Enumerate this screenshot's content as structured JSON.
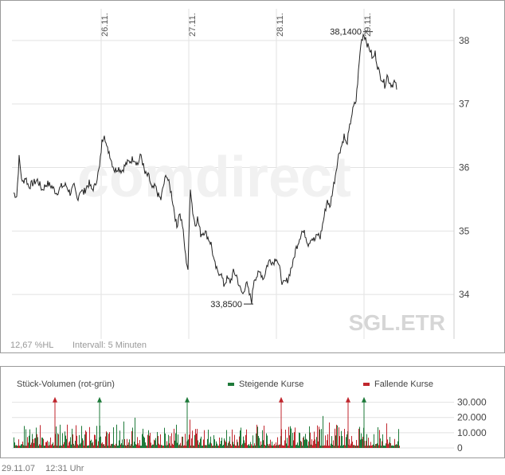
{
  "chart_data": [
    {
      "type": "line",
      "symbol": "SGL.ETR",
      "watermark": "comdirect",
      "date_labels": [
        "26.11.",
        "27.11.",
        "28.11.",
        "29.11."
      ],
      "y_ticks": [
        34,
        35,
        36,
        37,
        38
      ],
      "ylim": [
        33.3,
        38.5
      ],
      "high": {
        "label": "38,1400",
        "value": 38.14
      },
      "low": {
        "label": "33,8500",
        "value": 33.85
      },
      "stats_label": "12,67 %HL",
      "interval_label": "Intervall: 5 Minuten",
      "grid": true,
      "x": [
        0,
        1,
        2,
        3,
        4,
        5,
        6,
        7,
        8,
        9,
        10,
        11,
        12,
        13,
        14,
        15,
        16,
        17,
        18,
        19,
        20,
        21,
        22,
        23,
        24,
        25,
        26,
        27,
        28,
        29,
        30,
        31,
        32,
        33,
        34,
        35,
        36,
        37,
        38,
        39,
        40,
        41,
        42,
        43,
        44,
        45,
        46,
        47,
        48,
        49,
        50,
        51,
        52,
        53,
        54,
        55,
        56,
        57,
        58,
        59,
        60,
        61,
        62,
        63,
        64,
        65,
        66,
        67,
        68,
        69,
        70,
        71,
        72,
        73,
        74,
        75,
        76,
        77,
        78,
        79,
        80,
        81,
        82,
        83,
        84,
        85,
        86,
        87,
        88,
        89,
        90,
        91,
        92,
        93,
        94,
        95,
        96,
        97,
        98,
        99,
        100,
        101,
        102,
        103,
        104,
        105,
        106,
        107,
        108,
        109,
        110,
        111,
        112,
        113,
        114,
        115,
        116,
        117,
        118,
        119,
        120,
        121,
        122,
        123,
        124,
        125,
        126,
        127,
        128,
        129,
        130,
        131,
        132,
        133,
        134,
        135,
        136,
        137,
        138,
        139,
        140,
        141,
        142,
        143,
        144,
        145,
        146,
        147,
        148,
        149,
        150,
        151,
        152,
        153,
        154,
        155,
        156,
        157,
        158,
        159,
        160,
        161,
        162,
        163,
        164,
        165,
        166,
        167,
        168,
        169,
        170,
        171,
        172,
        173,
        174,
        175,
        176,
        177,
        178,
        179,
        180,
        181,
        182,
        183,
        184,
        185,
        186,
        187,
        188,
        189,
        190,
        191,
        192,
        193,
        194,
        195,
        196,
        197,
        198,
        199,
        200,
        201,
        202,
        203,
        204,
        205,
        206,
        207,
        208,
        209,
        210,
        211,
        212,
        213,
        214,
        215,
        216,
        217,
        218,
        219,
        220,
        221,
        222,
        223,
        224,
        225,
        226,
        227,
        228,
        229,
        230,
        231,
        232,
        233,
        234,
        235,
        236,
        237,
        238,
        239,
        240,
        241,
        242,
        243,
        244,
        245,
        246,
        247,
        248,
        249,
        250,
        251,
        252,
        253,
        254,
        255,
        256,
        257,
        258,
        259,
        260,
        261,
        262,
        263,
        264,
        265,
        266,
        267,
        268,
        269,
        270,
        271,
        272,
        273,
        274,
        275,
        276,
        277,
        278,
        279,
        280,
        281,
        282,
        283,
        284,
        285,
        286,
        287,
        288,
        289,
        290,
        291,
        292,
        293,
        294,
        295,
        296,
        297,
        298,
        299,
        300,
        301,
        302,
        303,
        304,
        305,
        306,
        307,
        308,
        309,
        310,
        311,
        312,
        313,
        314,
        315,
        316,
        317,
        318,
        319,
        320,
        321,
        322,
        323,
        324,
        325,
        326,
        327,
        328,
        329,
        330,
        331,
        332,
        333,
        334,
        335,
        336,
        337,
        338,
        339,
        340,
        341,
        342,
        343,
        344,
        345,
        346,
        347,
        348,
        349,
        350,
        351,
        352,
        353,
        354,
        355,
        356,
        357,
        358,
        359,
        360,
        361,
        362,
        363,
        364,
        365,
        366,
        367,
        368,
        369,
        370,
        371,
        372,
        373,
        374,
        375,
        376,
        377,
        378,
        379,
        380,
        381,
        382,
        383,
        384,
        385,
        386,
        387,
        388,
        389,
        390,
        391,
        392,
        393,
        394,
        395,
        396,
        397,
        398,
        399,
        400,
        401,
        402,
        403,
        404,
        405,
        406,
        407,
        408,
        409,
        410,
        411,
        412,
        413,
        414,
        415,
        416,
        417,
        418,
        419,
        420,
        421,
        422,
        423,
        424,
        425,
        426,
        427,
        428,
        429,
        430,
        431,
        432,
        433,
        434,
        435,
        436,
        437,
        438,
        439,
        440,
        441,
        442,
        443,
        444,
        445,
        446,
        447,
        448,
        449,
        450,
        451,
        452,
        453,
        454,
        455,
        456,
        457,
        458,
        459,
        460,
        461,
        462,
        463,
        464,
        465,
        466,
        467,
        468,
        469,
        470,
        471,
        472,
        473,
        474,
        475,
        476,
        477,
        478,
        479,
        480,
        481,
        482,
        483,
        484,
        485,
        486,
        487,
        488,
        489,
        490,
        491,
        492,
        493,
        494,
        495,
        496,
        497,
        498,
        499
      ],
      "anchors": [
        [
          0,
          35.6
        ],
        [
          4,
          35.55
        ],
        [
          7,
          36.15
        ],
        [
          11,
          35.75
        ],
        [
          15,
          35.85
        ],
        [
          19,
          35.7
        ],
        [
          24,
          35.75
        ],
        [
          30,
          35.8
        ],
        [
          36,
          35.65
        ],
        [
          42,
          35.75
        ],
        [
          48,
          35.7
        ],
        [
          54,
          35.6
        ],
        [
          60,
          35.7
        ],
        [
          66,
          35.72
        ],
        [
          71,
          35.6
        ],
        [
          76,
          35.7
        ],
        [
          80,
          35.5
        ],
        [
          84,
          35.65
        ],
        [
          88,
          35.6
        ],
        [
          92,
          35.7
        ],
        [
          95,
          35.75
        ],
        [
          98,
          35.65
        ],
        [
          102,
          35.7
        ],
        [
          105,
          35.85
        ],
        [
          108,
          36.0
        ],
        [
          111,
          36.4
        ],
        [
          114,
          36.55
        ],
        [
          117,
          36.3
        ],
        [
          120,
          36.25
        ],
        [
          123,
          36.1
        ],
        [
          127,
          35.95
        ],
        [
          131,
          36.0
        ],
        [
          136,
          35.95
        ],
        [
          141,
          36.05
        ],
        [
          146,
          36.1
        ],
        [
          151,
          36.15
        ],
        [
          156,
          36.05
        ],
        [
          160,
          36.2
        ],
        [
          165,
          35.9
        ],
        [
          170,
          35.85
        ],
        [
          174,
          35.65
        ],
        [
          178,
          35.7
        ],
        [
          182,
          35.55
        ],
        [
          185,
          35.5
        ],
        [
          188,
          35.7
        ],
        [
          192,
          35.9
        ],
        [
          195,
          35.75
        ],
        [
          198,
          35.6
        ],
        [
          202,
          35.3
        ],
        [
          205,
          35.05
        ],
        [
          208,
          35.3
        ],
        [
          212,
          35.1
        ],
        [
          216,
          34.6
        ],
        [
          219,
          34.4
        ],
        [
          222,
          35.7
        ],
        [
          225,
          35.3
        ],
        [
          228,
          35.1
        ],
        [
          231,
          35.2
        ],
        [
          235,
          34.95
        ],
        [
          240,
          35.0
        ],
        [
          244,
          34.9
        ],
        [
          248,
          34.8
        ],
        [
          252,
          34.5
        ],
        [
          256,
          34.35
        ],
        [
          260,
          34.35
        ],
        [
          264,
          34.15
        ],
        [
          268,
          34.25
        ],
        [
          272,
          34.2
        ],
        [
          276,
          34.35
        ],
        [
          280,
          34.3
        ],
        [
          284,
          34.1
        ],
        [
          288,
          34.0
        ],
        [
          292,
          34.2
        ],
        [
          296,
          34.0
        ],
        [
          299,
          33.9
        ],
        [
          302,
          34.25
        ],
        [
          306,
          34.3
        ],
        [
          310,
          34.35
        ],
        [
          314,
          34.25
        ],
        [
          318,
          34.45
        ],
        [
          322,
          34.55
        ],
        [
          326,
          34.5
        ],
        [
          330,
          34.6
        ],
        [
          334,
          34.4
        ],
        [
          338,
          34.15
        ],
        [
          342,
          34.2
        ],
        [
          345,
          34.25
        ],
        [
          348,
          34.4
        ],
        [
          351,
          34.5
        ],
        [
          354,
          34.7
        ],
        [
          358,
          34.85
        ],
        [
          362,
          35.0
        ],
        [
          366,
          34.95
        ],
        [
          370,
          34.8
        ],
        [
          374,
          34.9
        ],
        [
          378,
          34.85
        ],
        [
          382,
          34.95
        ],
        [
          385,
          34.9
        ],
        [
          388,
          35.1
        ],
        [
          391,
          35.3
        ],
        [
          394,
          35.5
        ],
        [
          397,
          35.35
        ],
        [
          400,
          35.6
        ],
        [
          403,
          35.8
        ],
        [
          406,
          36.05
        ],
        [
          409,
          36.25
        ],
        [
          412,
          36.35
        ],
        [
          415,
          36.5
        ],
        [
          418,
          36.35
        ],
        [
          421,
          36.55
        ],
        [
          424,
          36.8
        ],
        [
          427,
          36.95
        ],
        [
          430,
          37.05
        ],
        [
          433,
          37.5
        ],
        [
          436,
          37.95
        ],
        [
          439,
          38.1
        ],
        [
          442,
          38.05
        ],
        [
          445,
          37.9
        ],
        [
          448,
          37.85
        ],
        [
          451,
          37.7
        ],
        [
          454,
          37.8
        ],
        [
          457,
          37.6
        ],
        [
          460,
          37.45
        ],
        [
          463,
          37.4
        ],
        [
          466,
          37.3
        ],
        [
          469,
          37.45
        ],
        [
          472,
          37.35
        ],
        [
          475,
          37.3
        ],
        [
          478,
          37.35
        ],
        [
          481,
          37.25
        ]
      ]
    },
    {
      "type": "bar",
      "title": "Stück-Volumen (rot-grün)",
      "legend": [
        "Steigende Kurse",
        "Fallende Kurse"
      ],
      "y_ticks": [
        "30.000",
        "20.000",
        "10.000",
        "0"
      ],
      "y_tick_values": [
        30000,
        20000,
        10000,
        0
      ],
      "ylim": [
        0,
        35000
      ],
      "colors": {
        "up": "#1e7a3a",
        "down": "#c0262d"
      },
      "spikes": [
        {
          "x": 52,
          "color": "down"
        },
        {
          "x": 108,
          "color": "up"
        },
        {
          "x": 218,
          "color": "up"
        },
        {
          "x": 336,
          "color": "down"
        },
        {
          "x": 420,
          "color": "down"
        },
        {
          "x": 440,
          "color": "up"
        }
      ]
    }
  ],
  "footer": {
    "date": "29.11.07",
    "time": "12:31 Uhr"
  }
}
